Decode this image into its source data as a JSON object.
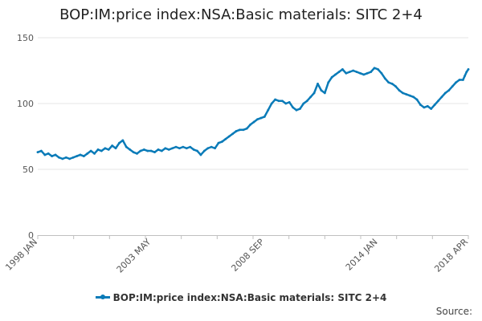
{
  "chart_data": {
    "type": "line",
    "title": "BOP:IM:price index:NSA:Basic materials: SITC 2+4",
    "xlabel": "",
    "ylabel": "",
    "ylim": [
      0,
      150
    ],
    "yticks": [
      0,
      50,
      100,
      150
    ],
    "x_tick_labels": [
      "1998 JAN",
      "2003 MAY",
      "2008 SEP",
      "2014 JAN",
      "2018 APR"
    ],
    "grid": true,
    "legend_position": "bottom",
    "source_label": "Source:",
    "series": [
      {
        "name": "BOP:IM:price index:NSA:Basic materials: SITC 2+4",
        "color": "#0a7bb8",
        "points": [
          [
            "1998-01",
            63
          ],
          [
            "1998-03",
            64
          ],
          [
            "1998-05",
            61
          ],
          [
            "1998-07",
            62
          ],
          [
            "1998-09",
            60
          ],
          [
            "1998-11",
            61
          ],
          [
            "1999-01",
            59
          ],
          [
            "1999-03",
            58
          ],
          [
            "1999-05",
            59
          ],
          [
            "1999-07",
            58
          ],
          [
            "1999-09",
            59
          ],
          [
            "1999-11",
            60
          ],
          [
            "2000-01",
            61
          ],
          [
            "2000-03",
            60
          ],
          [
            "2000-05",
            62
          ],
          [
            "2000-07",
            64
          ],
          [
            "2000-09",
            62
          ],
          [
            "2000-11",
            65
          ],
          [
            "2001-01",
            64
          ],
          [
            "2001-03",
            66
          ],
          [
            "2001-05",
            65
          ],
          [
            "2001-07",
            68
          ],
          [
            "2001-09",
            66
          ],
          [
            "2001-11",
            70
          ],
          [
            "2002-01",
            72
          ],
          [
            "2002-03",
            67
          ],
          [
            "2002-05",
            65
          ],
          [
            "2002-07",
            63
          ],
          [
            "2002-09",
            62
          ],
          [
            "2002-11",
            64
          ],
          [
            "2003-01",
            65
          ],
          [
            "2003-03",
            64
          ],
          [
            "2003-05",
            64
          ],
          [
            "2003-07",
            63
          ],
          [
            "2003-09",
            65
          ],
          [
            "2003-11",
            64
          ],
          [
            "2004-01",
            66
          ],
          [
            "2004-03",
            65
          ],
          [
            "2004-05",
            66
          ],
          [
            "2004-07",
            67
          ],
          [
            "2004-09",
            66
          ],
          [
            "2004-11",
            67
          ],
          [
            "2005-01",
            66
          ],
          [
            "2005-03",
            67
          ],
          [
            "2005-05",
            65
          ],
          [
            "2005-07",
            64
          ],
          [
            "2005-09",
            61
          ],
          [
            "2005-11",
            64
          ],
          [
            "2006-01",
            66
          ],
          [
            "2006-03",
            67
          ],
          [
            "2006-05",
            66
          ],
          [
            "2006-07",
            70
          ],
          [
            "2006-09",
            71
          ],
          [
            "2006-11",
            73
          ],
          [
            "2007-01",
            75
          ],
          [
            "2007-03",
            77
          ],
          [
            "2007-05",
            79
          ],
          [
            "2007-07",
            80
          ],
          [
            "2007-09",
            80
          ],
          [
            "2007-11",
            81
          ],
          [
            "2008-01",
            84
          ],
          [
            "2008-03",
            86
          ],
          [
            "2008-05",
            88
          ],
          [
            "2008-07",
            89
          ],
          [
            "2008-09",
            90
          ],
          [
            "2008-11",
            95
          ],
          [
            "2009-01",
            100
          ],
          [
            "2009-03",
            103
          ],
          [
            "2009-05",
            102
          ],
          [
            "2009-07",
            102
          ],
          [
            "2009-09",
            100
          ],
          [
            "2009-11",
            101
          ],
          [
            "2010-01",
            97
          ],
          [
            "2010-03",
            95
          ],
          [
            "2010-05",
            96
          ],
          [
            "2010-07",
            100
          ],
          [
            "2010-09",
            102
          ],
          [
            "2010-11",
            105
          ],
          [
            "2011-01",
            108
          ],
          [
            "2011-03",
            115
          ],
          [
            "2011-05",
            110
          ],
          [
            "2011-07",
            108
          ],
          [
            "2011-09",
            116
          ],
          [
            "2011-11",
            120
          ],
          [
            "2012-01",
            122
          ],
          [
            "2012-03",
            124
          ],
          [
            "2012-05",
            126
          ],
          [
            "2012-07",
            123
          ],
          [
            "2012-09",
            124
          ],
          [
            "2012-11",
            125
          ],
          [
            "2013-01",
            124
          ],
          [
            "2013-03",
            123
          ],
          [
            "2013-05",
            122
          ],
          [
            "2013-07",
            123
          ],
          [
            "2013-09",
            124
          ],
          [
            "2013-11",
            127
          ],
          [
            "2014-01",
            126
          ],
          [
            "2014-03",
            123
          ],
          [
            "2014-05",
            119
          ],
          [
            "2014-07",
            116
          ],
          [
            "2014-09",
            115
          ],
          [
            "2014-11",
            113
          ],
          [
            "2015-01",
            110
          ],
          [
            "2015-03",
            108
          ],
          [
            "2015-05",
            107
          ],
          [
            "2015-07",
            106
          ],
          [
            "2015-09",
            105
          ],
          [
            "2015-11",
            103
          ],
          [
            "2016-01",
            99
          ],
          [
            "2016-03",
            97
          ],
          [
            "2016-05",
            98
          ],
          [
            "2016-07",
            96
          ],
          [
            "2016-09",
            99
          ],
          [
            "2016-11",
            102
          ],
          [
            "2017-01",
            105
          ],
          [
            "2017-03",
            108
          ],
          [
            "2017-05",
            110
          ],
          [
            "2017-07",
            113
          ],
          [
            "2017-09",
            116
          ],
          [
            "2017-11",
            118
          ],
          [
            "2018-01",
            118
          ],
          [
            "2018-02",
            121
          ],
          [
            "2018-03",
            124
          ],
          [
            "2018-04",
            126
          ]
        ]
      }
    ]
  }
}
